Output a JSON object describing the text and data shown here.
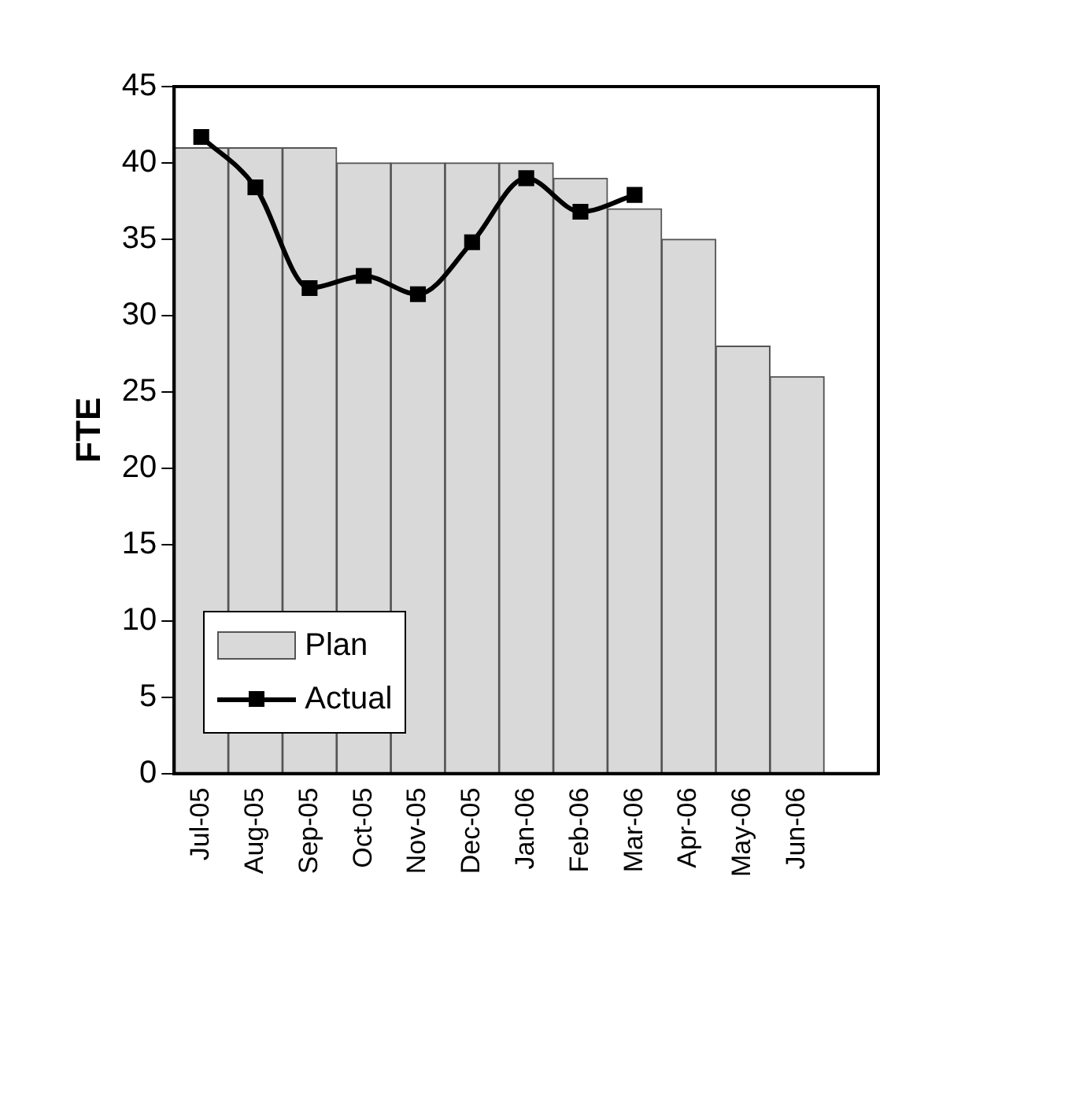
{
  "chart_data": {
    "type": "bar",
    "ylabel": "FTE",
    "categories": [
      "Jul-05",
      "Aug-05",
      "Sep-05",
      "Oct-05",
      "Nov-05",
      "Dec-05",
      "Jan-06",
      "Feb-06",
      "Mar-06",
      "Apr-06",
      "May-06",
      "Jun-06",
      null
    ],
    "series": [
      {
        "name": "Plan",
        "color": "#d9d9d9",
        "values": [
          41,
          41,
          41,
          40,
          40,
          40,
          40,
          39,
          37,
          35,
          28,
          26,
          null
        ]
      },
      {
        "name": "Actual",
        "type": "line",
        "color": "#000000",
        "values": [
          41.7,
          38.4,
          31.8,
          32.6,
          31.4,
          34.8,
          39,
          36.8,
          37.9,
          null,
          null,
          null,
          null
        ]
      }
    ],
    "ylim": [
      0,
      45
    ],
    "yticks": [
      0,
      5,
      10,
      15,
      20,
      25,
      30,
      35,
      40,
      45
    ],
    "grid": false,
    "legend": "bottom left",
    "marker": "square",
    "line_style": "solid"
  }
}
